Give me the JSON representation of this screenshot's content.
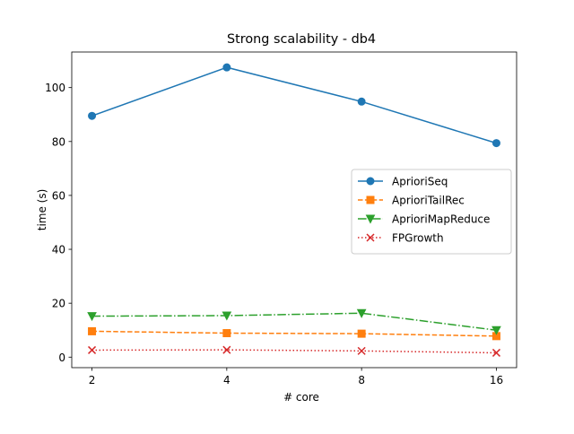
{
  "chart_data": {
    "type": "line",
    "title": "Strong scalability - db4",
    "xlabel": "# core",
    "ylabel": "time (s)",
    "x": [
      2,
      4,
      8,
      16
    ],
    "x_scale": "log2",
    "x_ticks": [
      "2",
      "4",
      "8",
      "16"
    ],
    "ylim": [
      -3.9,
      113.2
    ],
    "y_ticks": [
      0,
      20,
      40,
      60,
      80,
      100
    ],
    "grid": false,
    "legend_position": "center-right",
    "series": [
      {
        "name": "AprioriSeq",
        "values": [
          89.5,
          107.5,
          94.8,
          79.4
        ],
        "color": "#1f77b4",
        "marker": "circle",
        "linestyle": "solid"
      },
      {
        "name": "AprioriTailRec",
        "values": [
          9.6,
          8.9,
          8.7,
          7.8
        ],
        "color": "#ff7f0e",
        "marker": "square",
        "linestyle": "dashed"
      },
      {
        "name": "AprioriMapReduce",
        "values": [
          15.2,
          15.4,
          16.3,
          10.0
        ],
        "color": "#2ca02c",
        "marker": "triangle-down",
        "linestyle": "dashdot"
      },
      {
        "name": "FPGrowth",
        "values": [
          2.6,
          2.7,
          2.3,
          1.6
        ],
        "color": "#d62728",
        "marker": "x",
        "linestyle": "dotted"
      }
    ]
  }
}
